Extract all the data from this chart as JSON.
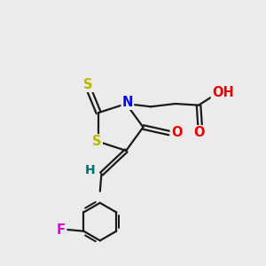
{
  "bg_color": "#ebebeb",
  "bond_color": "#1a1a1a",
  "bond_width": 1.6,
  "atom_colors": {
    "S": "#b8b800",
    "N": "#0000ee",
    "O": "#ee0000",
    "F": "#dd00dd",
    "H": "#007070"
  },
  "font_size": 10.5,
  "figsize": [
    3.0,
    3.0
  ],
  "dpi": 100
}
